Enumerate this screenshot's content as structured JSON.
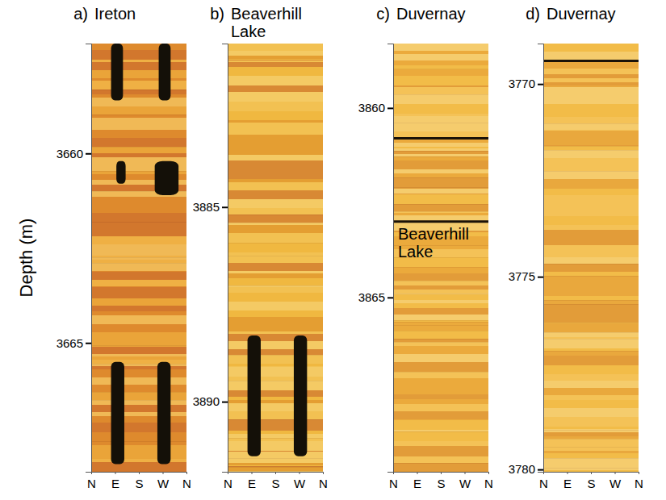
{
  "chart_data": [
    {
      "type": "image_log",
      "panel_label": "a)",
      "title": "Ireton",
      "ylabel": "Depth (m)",
      "xlim": [
        0,
        360
      ],
      "xticks": [
        {
          "value": 0,
          "label": "N"
        },
        {
          "value": 90,
          "label": "E"
        },
        {
          "value": 180,
          "label": "S"
        },
        {
          "value": 270,
          "label": "W"
        },
        {
          "value": 360,
          "label": "N"
        }
      ],
      "ylim": [
        3657.1,
        3668.4
      ],
      "yticks": [
        3660,
        3665
      ],
      "breakouts": [
        {
          "top": 3657.1,
          "bottom": 3658.6,
          "az_from": 75,
          "az_to": 120
        },
        {
          "top": 3657.1,
          "bottom": 3658.6,
          "az_from": 255,
          "az_to": 300
        },
        {
          "top": 3660.2,
          "bottom": 3660.8,
          "az_from": 95,
          "az_to": 130
        },
        {
          "top": 3660.2,
          "bottom": 3661.1,
          "az_from": 240,
          "az_to": 330
        },
        {
          "top": 3665.5,
          "bottom": 3668.2,
          "az_from": 75,
          "az_to": 125
        },
        {
          "top": 3665.5,
          "bottom": 3668.2,
          "az_from": 250,
          "az_to": 300
        }
      ]
    },
    {
      "type": "image_log",
      "panel_label": "b)",
      "title": "Beaverhill Lake",
      "xlim": [
        0,
        360
      ],
      "xticks": [
        {
          "value": 0,
          "label": "N"
        },
        {
          "value": 90,
          "label": "E"
        },
        {
          "value": 180,
          "label": "S"
        },
        {
          "value": 270,
          "label": "W"
        },
        {
          "value": 360,
          "label": "N"
        }
      ],
      "ylim": [
        3880.8,
        3891.8
      ],
      "yticks": [
        3885,
        3890
      ],
      "breakouts": [
        {
          "top": 3888.3,
          "bottom": 3891.4,
          "az_from": 75,
          "az_to": 125
        },
        {
          "top": 3888.3,
          "bottom": 3891.4,
          "az_from": 250,
          "az_to": 300
        }
      ]
    },
    {
      "type": "image_log",
      "panel_label": "c)",
      "title": "Duvernay",
      "xlim": [
        0,
        360
      ],
      "xticks": [
        {
          "value": 0,
          "label": "N"
        },
        {
          "value": 90,
          "label": "E"
        },
        {
          "value": 180,
          "label": "S"
        },
        {
          "value": 270,
          "label": "W"
        },
        {
          "value": 360,
          "label": "N"
        }
      ],
      "ylim": [
        3858.3,
        3869.6
      ],
      "yticks": [
        3860,
        3865
      ],
      "bed_boundaries": [
        3860.8,
        3863.0
      ],
      "annotations": [
        {
          "text": "Beaverhill Lake"
        }
      ]
    },
    {
      "type": "image_log",
      "panel_label": "d)",
      "title": "Duvernay",
      "xlim": [
        0,
        360
      ],
      "xticks": [
        {
          "value": 0,
          "label": "N"
        },
        {
          "value": 90,
          "label": "E"
        },
        {
          "value": 180,
          "label": "S"
        },
        {
          "value": 270,
          "label": "W"
        },
        {
          "value": 360,
          "label": "N"
        }
      ],
      "ylim": [
        3768.95,
        3780.06
      ],
      "yticks": [
        3770,
        3775,
        3780
      ],
      "bed_boundaries": [
        3769.4
      ]
    }
  ]
}
